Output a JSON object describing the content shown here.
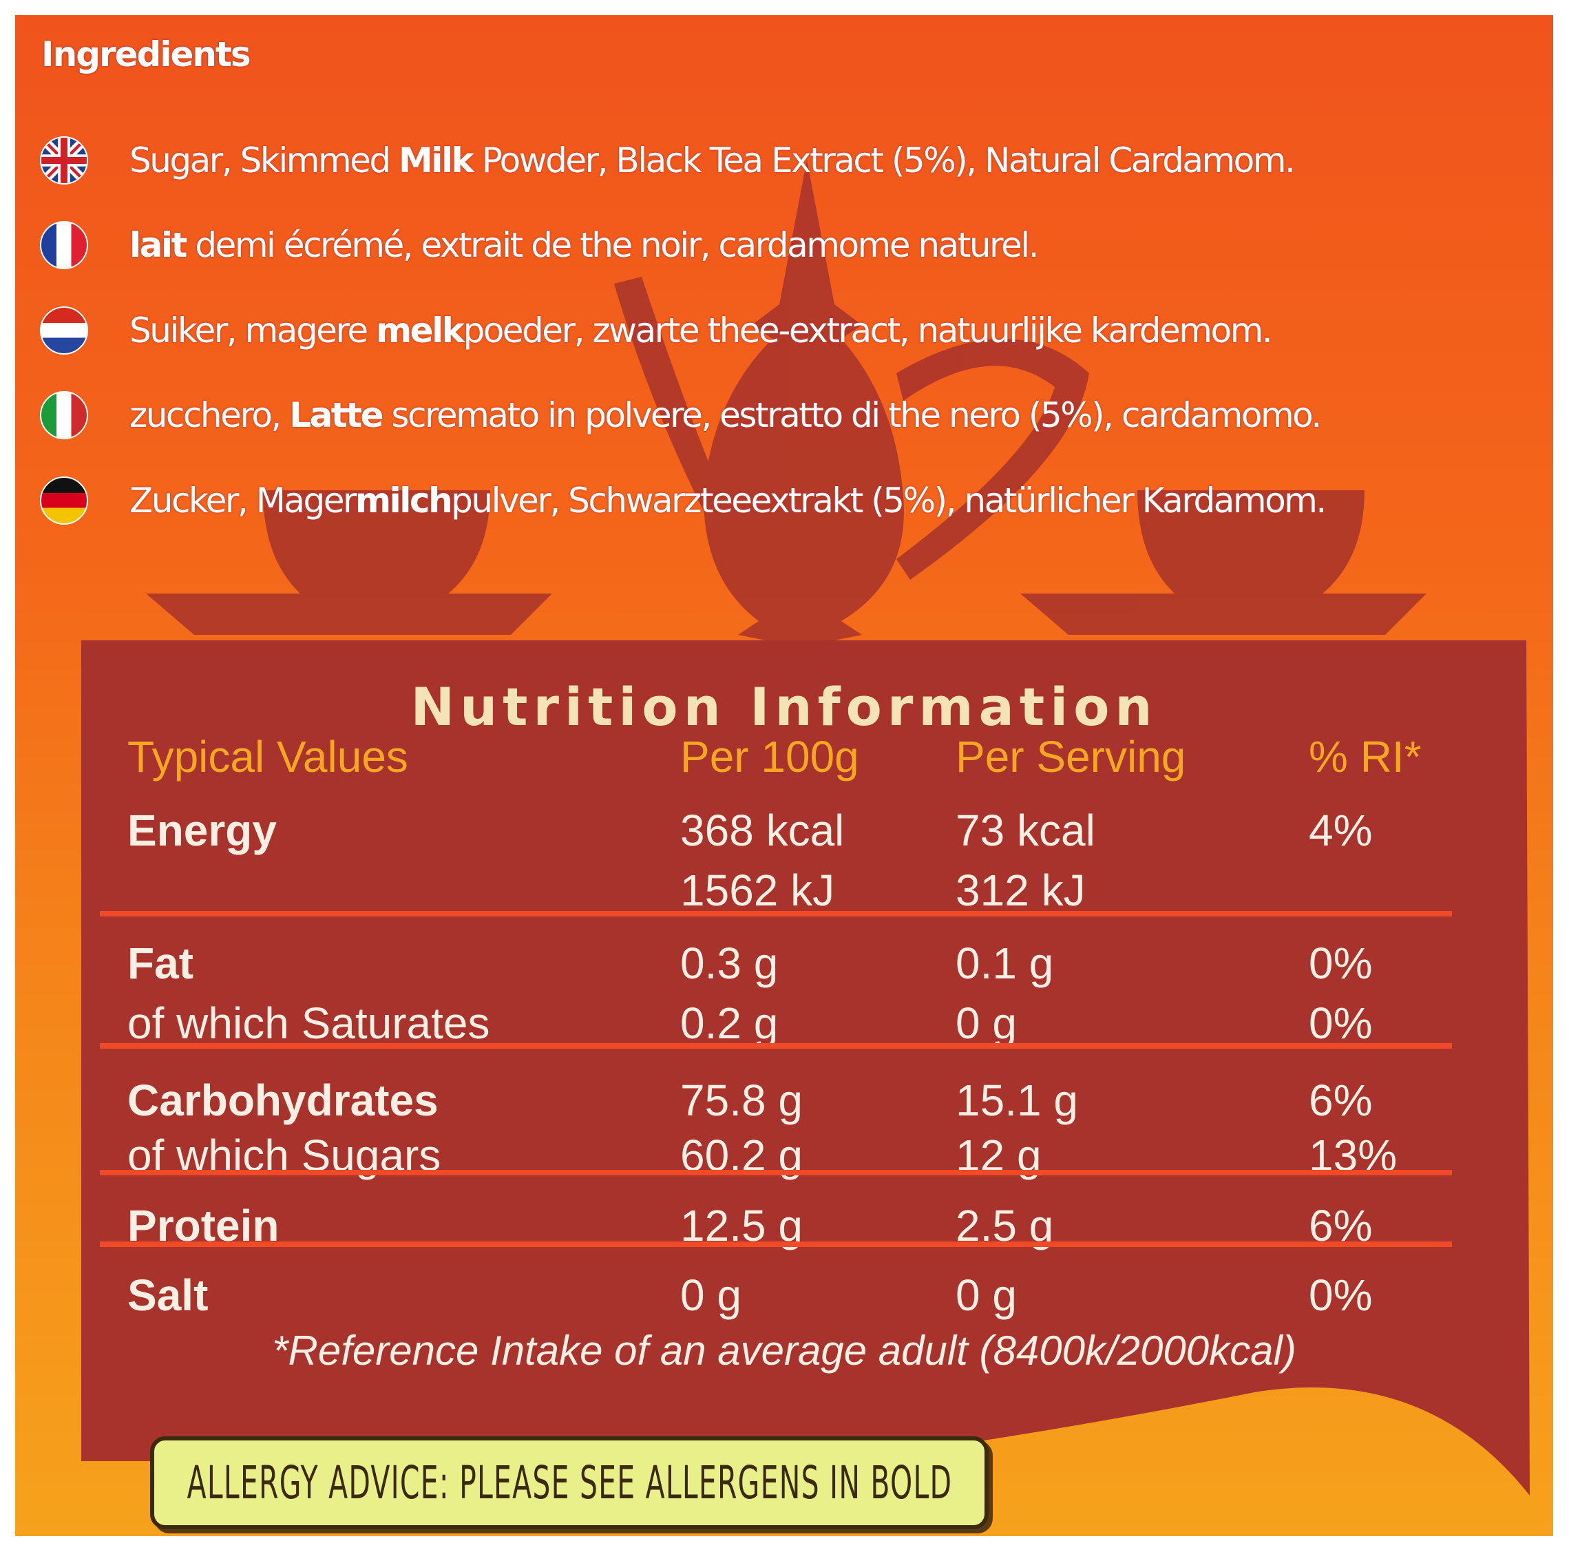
{
  "colors": {
    "background_top": "#f0541c",
    "background_bottom": "#f6a21c",
    "panel": "#a8322c",
    "header_text": "#f5a623",
    "title_text": "#f5e3b8",
    "divider": "#f04a26",
    "allergy_box": "#e9f08a"
  },
  "ingredients": {
    "title": "Ingredients",
    "rows": [
      {
        "flag": "uk-flag-icon",
        "parts": [
          [
            "Sugar, Skimmed ",
            false
          ],
          [
            "Milk",
            true
          ],
          [
            " Powder, Black Tea Extract (5%), Natural Cardamom.",
            false
          ]
        ]
      },
      {
        "flag": "france-flag-icon",
        "parts": [
          [
            "lait",
            true
          ],
          [
            " demi écrémé, extrait de the noir, cardamome naturel.",
            false
          ]
        ]
      },
      {
        "flag": "netherlands-flag-icon",
        "parts": [
          [
            "Suiker, magere ",
            false
          ],
          [
            "melk",
            true
          ],
          [
            "poeder, zwarte thee-extract, natuurlijke kardemom.",
            false
          ]
        ]
      },
      {
        "flag": "italy-flag-icon",
        "parts": [
          [
            "zucchero, ",
            false
          ],
          [
            "Latte",
            true
          ],
          [
            " scremato in polvere, estratto di the nero (5%), cardamomo.",
            false
          ]
        ]
      },
      {
        "flag": "germany-flag-icon",
        "parts": [
          [
            "Zucker, Mager",
            false
          ],
          [
            "milch",
            true
          ],
          [
            "pulver, Schwarzteeextrakt (5%), natürlicher Kardamom.",
            false
          ]
        ]
      }
    ]
  },
  "nutrition": {
    "title": "Nutrition Information",
    "headers": [
      "Typical Values",
      "Per 100g",
      "Per Serving",
      "% RI*"
    ],
    "rows": [
      {
        "label": "Energy",
        "bold": true,
        "per100": "368 kcal",
        "serving": "73 kcal",
        "ri": "4%"
      },
      {
        "label": "",
        "bold": false,
        "per100": "1562 kJ",
        "serving": "312 kJ",
        "ri": ""
      },
      {
        "label": "Fat",
        "bold": true,
        "per100": "0.3 g",
        "serving": "0.1 g",
        "ri": "0%"
      },
      {
        "label": "of which Saturates",
        "bold": false,
        "per100": "0.2 g",
        "serving": "0 g",
        "ri": "0%"
      },
      {
        "label": "Carbohydrates",
        "bold": true,
        "per100": "75.8 g",
        "serving": "15.1 g",
        "ri": "6%"
      },
      {
        "label": "of which Sugars",
        "bold": false,
        "per100": "60.2 g",
        "serving": "12 g",
        "ri": "13%"
      },
      {
        "label": "Protein",
        "bold": true,
        "per100": "12.5 g",
        "serving": "2.5 g",
        "ri": "6%"
      },
      {
        "label": "Salt",
        "bold": true,
        "per100": "0 g",
        "serving": "0 g",
        "ri": "0%"
      }
    ],
    "footnote": "*Reference Intake of an average adult (8400k/2000kcal)"
  },
  "allergy": {
    "text": "ALLERGY ADVICE: PLEASE SEE ALLERGENS IN BOLD"
  }
}
